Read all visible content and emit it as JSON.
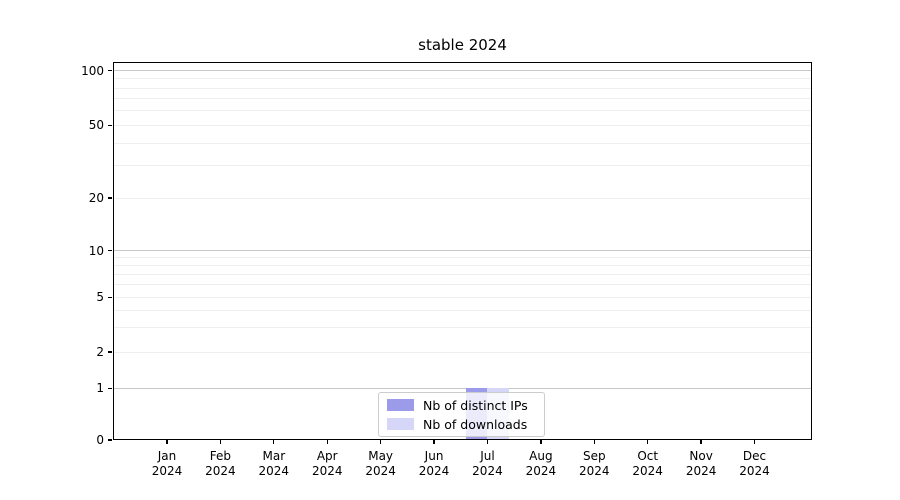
{
  "chart_data": {
    "type": "bar",
    "title": "stable 2024",
    "categories": [
      "Jan",
      "Feb",
      "Mar",
      "Apr",
      "May",
      "Jun",
      "Jul",
      "Aug",
      "Sep",
      "Oct",
      "Nov",
      "Dec"
    ],
    "x_year_suffix": "2024",
    "series": [
      {
        "name": "Nb of distinct IPs",
        "color": "#9b9bea",
        "values": [
          0,
          0,
          0,
          0,
          0,
          0,
          1,
          0,
          0,
          0,
          0,
          0
        ]
      },
      {
        "name": "Nb of downloads",
        "color": "#d6d6f8",
        "values": [
          0,
          0,
          0,
          0,
          0,
          0,
          1,
          0,
          0,
          0,
          0,
          0
        ]
      }
    ],
    "yscale": "symlog",
    "ylim": [
      0,
      112
    ],
    "y_major_ticks": [
      0,
      1,
      2,
      5,
      10,
      20,
      50,
      100
    ],
    "y_decade_gridlines": [
      1,
      10,
      100
    ],
    "y_minor_gridlines": [
      3,
      4,
      6,
      7,
      8,
      9,
      30,
      40,
      60,
      70,
      80,
      90
    ],
    "grid": true,
    "legend_position": "lower center"
  }
}
